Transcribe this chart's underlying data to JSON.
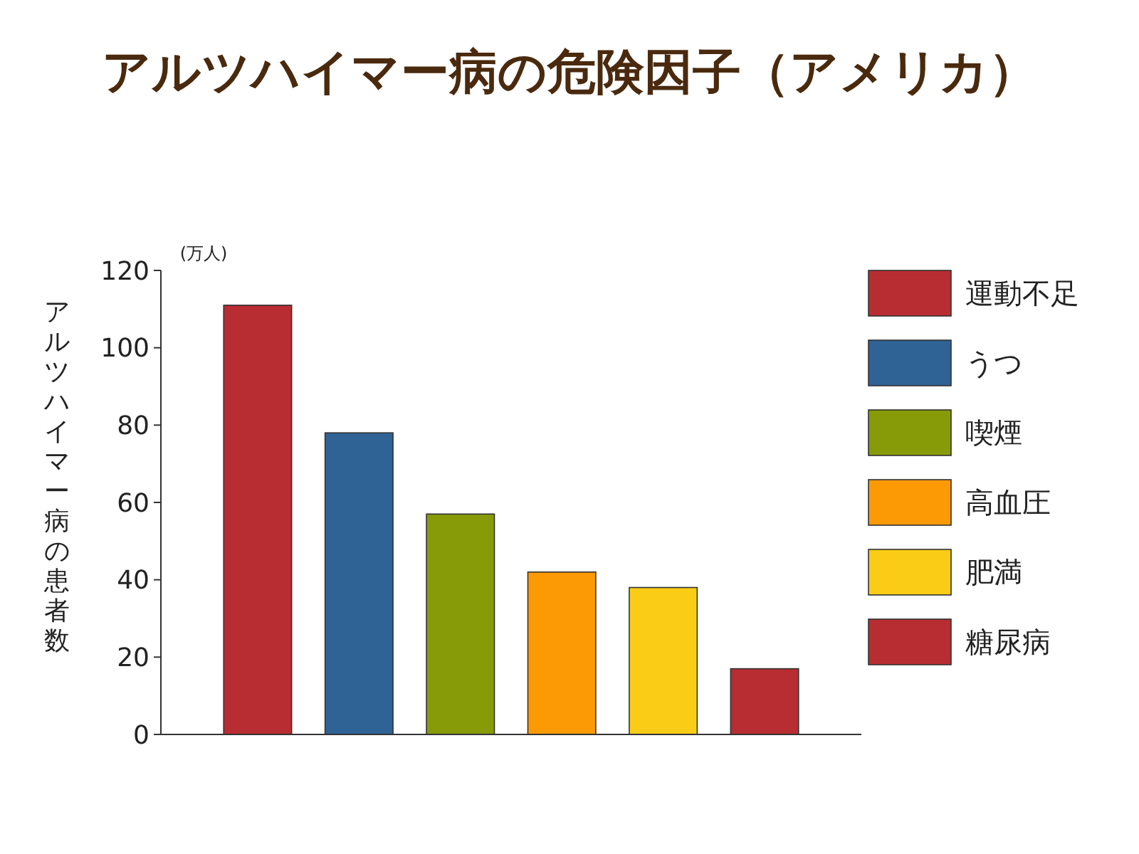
{
  "chart_data": {
    "type": "bar",
    "title": "アルツハイマー病の危険因子（アメリカ）",
    "ylabel": "アルツハイマー病の患者数",
    "annotations": [
      "(万人)"
    ],
    "categories": [
      null
    ],
    "series": [
      {
        "name": "運動不足",
        "color": "#b82d32",
        "values": [
          111
        ]
      },
      {
        "name": "うつ",
        "color": "#2f6295",
        "values": [
          78
        ]
      },
      {
        "name": "喫煙",
        "color": "#879b08",
        "values": [
          57
        ]
      },
      {
        "name": "高血圧",
        "color": "#fc9a05",
        "values": [
          42
        ]
      },
      {
        "name": "肥満",
        "color": "#facc16",
        "values": [
          38
        ]
      },
      {
        "name": "糖尿病",
        "color": "#b82d32",
        "values": [
          17
        ]
      }
    ],
    "ylim": [
      0,
      120
    ],
    "yticks": [
      0,
      20,
      40,
      60,
      80,
      100,
      120
    ],
    "tick_labels": "y",
    "legend": "right",
    "grid": false
  }
}
